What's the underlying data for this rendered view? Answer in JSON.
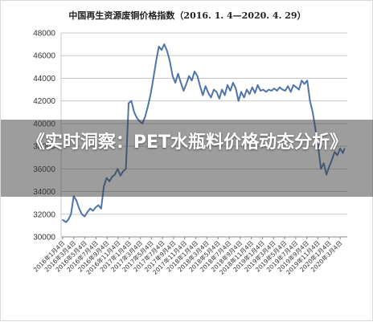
{
  "overlay": {
    "headline": "《实时洞察：PET水瓶料价格动态分析》"
  },
  "colors": {
    "line": "#4f74aa",
    "grid": "#c8c8c8",
    "overlay": "#3c3c3c"
  },
  "chart_data": {
    "type": "line",
    "title": "中国再生资源废铜价格指数（2016. 1. 4—2020. 4. 29）",
    "ylim": [
      30000,
      48000
    ],
    "yticks": [
      30000,
      32000,
      34000,
      36000,
      38000,
      40000,
      42000,
      44000,
      46000,
      48000
    ],
    "grid": "horizontal",
    "legend": "none",
    "xticks": [
      "2016年1月4日",
      "2016年3月4日",
      "2016年5月4日",
      "2016年7月4日",
      "2016年9月4日",
      "2016年11月4日",
      "2017年1月4日",
      "2017年3月4日",
      "2017年5月4日",
      "2017年7月4日",
      "2017年9月4日",
      "2017年11月4日",
      "2018年1月4日",
      "2018年3月4日",
      "2018年5月4日",
      "2018年7月4日",
      "2018年9月4日",
      "2018年11月4日",
      "2019年1月4日",
      "2019年3月4日",
      "2019年5月4日",
      "2019年7月4日",
      "2019年9月4日",
      "2019年11月4日",
      "2020年1月4日",
      "2020年3月4日"
    ],
    "series": [
      {
        "x": [
          0,
          0.3,
          0.6,
          1.0,
          1.5,
          2.0,
          2.5,
          3.0,
          3.5,
          4.0,
          4.5,
          5.0,
          5.5,
          6.0,
          6.5,
          7.0,
          7.5,
          8.0,
          8.5,
          9.0,
          9.5,
          10.0,
          10.5,
          11.0,
          11.5,
          12.0,
          12.5,
          13.0,
          13.5,
          14.0,
          14.5,
          15.0,
          15.5,
          16.0,
          16.5,
          17.0,
          17.5,
          18.0,
          18.5,
          19.0,
          19.5,
          20.0,
          20.5,
          21.0,
          21.5,
          22.0,
          22.5,
          23.0,
          23.5,
          24.0,
          24.5,
          25.0,
          25.5,
          26.0,
          26.5,
          27.0,
          27.5,
          28.0,
          28.5,
          29.0,
          29.5,
          30.0,
          30.5,
          31.0,
          31.5,
          32.0,
          32.5,
          33.0,
          33.5,
          34.0,
          34.5,
          35.0,
          35.5,
          36.0,
          36.5,
          37.0,
          37.5,
          38.0,
          38.5,
          39.0,
          39.5,
          40.0,
          40.5,
          41.0,
          41.5,
          42.0,
          42.5,
          43.0,
          43.5,
          44.0,
          44.5,
          45.0,
          45.5,
          46.0,
          46.5,
          47.0,
          47.5,
          48.0,
          48.5,
          49.0,
          49.5,
          50.0,
          50.5,
          51.0,
          51.3
        ],
        "values": [
          31500,
          31400,
          31300,
          31500,
          32000,
          33600,
          33200,
          32500,
          32000,
          31800,
          32200,
          32500,
          32300,
          32600,
          32800,
          32500,
          34500,
          35200,
          34900,
          35300,
          35500,
          36000,
          35400,
          35800,
          36000,
          41800,
          42000,
          41000,
          40500,
          40200,
          40000,
          40600,
          41500,
          42600,
          44000,
          45500,
          46800,
          46500,
          47000,
          46400,
          45500,
          44200,
          43600,
          44400,
          43600,
          42900,
          43500,
          44200,
          43800,
          44600,
          44200,
          43300,
          42500,
          43300,
          42700,
          42300,
          43000,
          42800,
          42200,
          43000,
          42500,
          43400,
          42900,
          43600,
          43100,
          42000,
          42800,
          42300,
          43000,
          42600,
          43200,
          42700,
          43400,
          42900,
          43000,
          42800,
          43000,
          42900,
          43100,
          42900,
          43200,
          43000,
          42900,
          43300,
          42800,
          43400,
          43200,
          43000,
          43800,
          43500,
          43800,
          42000,
          41000,
          39500,
          38000,
          36000,
          36500,
          35500,
          36200,
          36800,
          37500,
          37200,
          37800,
          37400,
          37800
        ]
      }
    ]
  }
}
